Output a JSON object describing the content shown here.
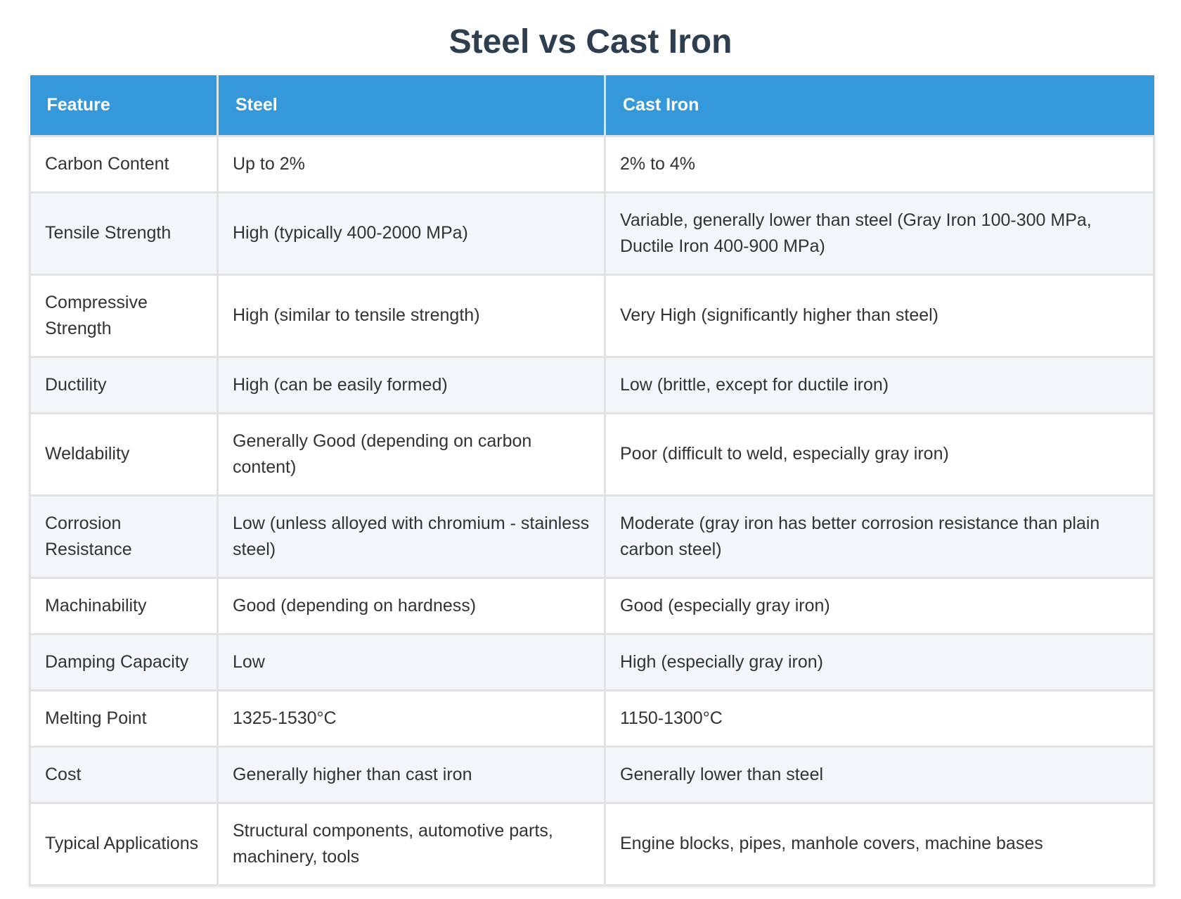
{
  "page": {
    "title": "Steel vs Cast Iron"
  },
  "colors": {
    "header_background": "#3498db",
    "header_text": "#ffffff",
    "title_text": "#2c3e50",
    "row_alt_background": "#f2f5f9",
    "border": "#e2e2e2"
  },
  "table": {
    "headers": [
      "Feature",
      "Steel",
      "Cast Iron"
    ],
    "rows": [
      [
        "Carbon Content",
        "Up to 2%",
        "2% to 4%"
      ],
      [
        "Tensile Strength",
        "High (typically 400-2000 MPa)",
        "Variable, generally lower than steel (Gray Iron 100-300 MPa, Ductile Iron 400-900 MPa)"
      ],
      [
        "Compressive Strength",
        "High (similar to tensile strength)",
        "Very High (significantly higher than steel)"
      ],
      [
        "Ductility",
        "High (can be easily formed)",
        "Low (brittle, except for ductile iron)"
      ],
      [
        "Weldability",
        "Generally Good (depending on carbon content)",
        "Poor (difficult to weld, especially gray iron)"
      ],
      [
        "Corrosion Resistance",
        "Low (unless alloyed with chromium - stainless steel)",
        "Moderate (gray iron has better corrosion resistance than plain carbon steel)"
      ],
      [
        "Machinability",
        "Good (depending on hardness)",
        "Good (especially gray iron)"
      ],
      [
        "Damping Capacity",
        "Low",
        "High (especially gray iron)"
      ],
      [
        "Melting Point",
        "1325-1530°C",
        "1150-1300°C"
      ],
      [
        "Cost",
        "Generally higher than cast iron",
        "Generally lower than steel"
      ],
      [
        "Typical Applications",
        "Structural components, automotive parts, machinery, tools",
        "Engine blocks, pipes, manhole covers, machine bases"
      ]
    ]
  }
}
